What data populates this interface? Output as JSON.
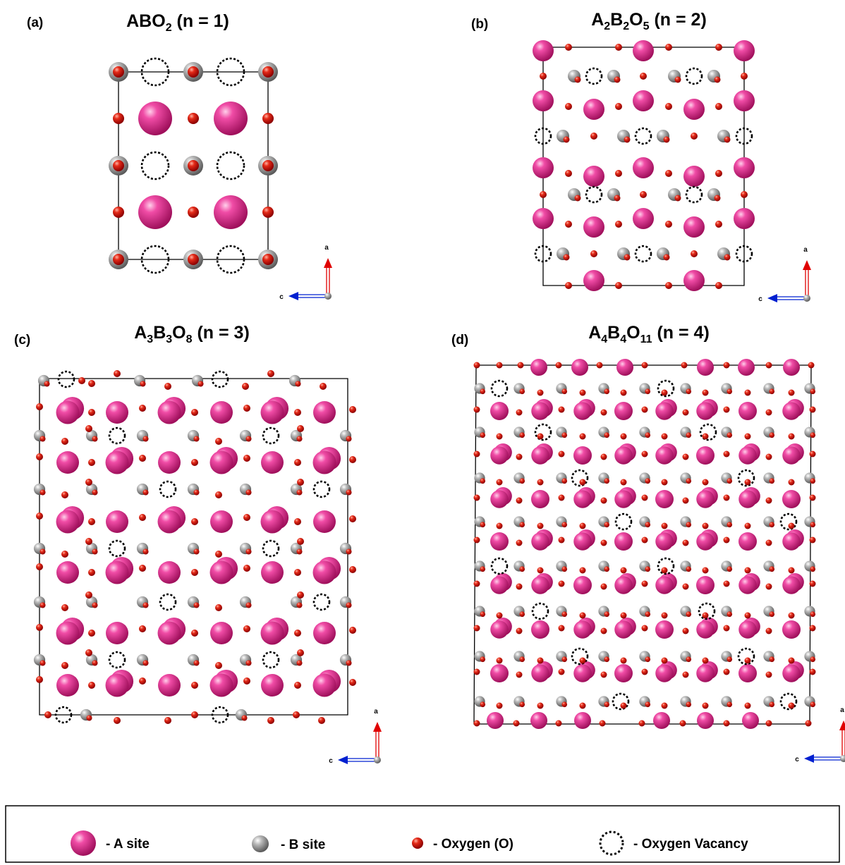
{
  "figure": {
    "panels": [
      {
        "id": "a",
        "label": "(a)",
        "formula": {
          "parts": [
            {
              "t": "ABO"
            },
            {
              "t": "2",
              "sub": true
            }
          ]
        },
        "n_label": "(n = 1)",
        "axis_labels": {
          "vertical": "a",
          "horizontal": "c"
        }
      },
      {
        "id": "b",
        "label": "(b)",
        "formula": {
          "parts": [
            {
              "t": "A"
            },
            {
              "t": "2",
              "sub": true
            },
            {
              "t": "B"
            },
            {
              "t": "2",
              "sub": true
            },
            {
              "t": "O"
            },
            {
              "t": "5",
              "sub": true
            }
          ]
        },
        "n_label": "(n = 2)",
        "axis_labels": {
          "vertical": "a",
          "horizontal": "c"
        }
      },
      {
        "id": "c",
        "label": "(c)",
        "formula": {
          "parts": [
            {
              "t": "A"
            },
            {
              "t": "3",
              "sub": true
            },
            {
              "t": "B"
            },
            {
              "t": "3",
              "sub": true
            },
            {
              "t": "O"
            },
            {
              "t": "8",
              "sub": true
            }
          ]
        },
        "n_label": "(n = 3)",
        "axis_labels": {
          "vertical": "a",
          "horizontal": "c"
        }
      },
      {
        "id": "d",
        "label": "(d)",
        "formula": {
          "parts": [
            {
              "t": "A"
            },
            {
              "t": "4",
              "sub": true
            },
            {
              "t": "B"
            },
            {
              "t": "4",
              "sub": true
            },
            {
              "t": "O"
            },
            {
              "t": "11",
              "sub": true
            }
          ]
        },
        "n_label": "(n = 4)",
        "axis_labels": {
          "vertical": "a",
          "horizontal": "c"
        }
      }
    ],
    "legend": {
      "items": [
        {
          "kind": "A",
          "label": "- A site"
        },
        {
          "kind": "B",
          "label": "- B site"
        },
        {
          "kind": "O",
          "label": "- Oxygen (O)"
        },
        {
          "kind": "V",
          "label": "- Oxygen Vacancy"
        }
      ]
    },
    "colors": {
      "a_site": "#e0218a",
      "b_site": "#9a9a9a",
      "oxygen": "#e01010",
      "vacancy": "#000000",
      "axis_a": "#e00000",
      "axis_c": "#0020d0",
      "cell_line": "#000000"
    }
  }
}
